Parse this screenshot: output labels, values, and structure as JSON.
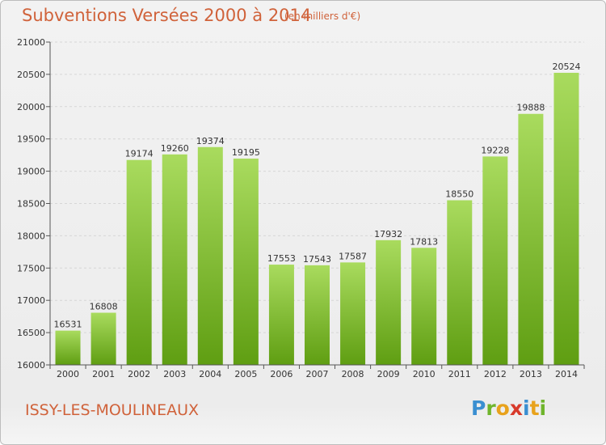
{
  "header": {
    "title": "Subventions Versées 2000 à 2014",
    "unit": "(en milliers d'€)"
  },
  "footer": {
    "place": "ISSY-LES-MOULINEAUX",
    "logo": "Proxiti"
  },
  "colors": {
    "accent": "#d0623a",
    "bar_top": "#a9db5e",
    "bar_bottom": "#5f9e12",
    "logo_letters": [
      "#3a8fd1",
      "#6fb52c",
      "#e8a21c",
      "#d83a2b",
      "#3a8fd1",
      "#e8a21c",
      "#6fb52c"
    ]
  },
  "chart_data": {
    "type": "bar",
    "title": "Subventions Versées 2000 à 2014",
    "subtitle": "(en milliers d'€)",
    "categories": [
      "2000",
      "2001",
      "2002",
      "2003",
      "2004",
      "2005",
      "2006",
      "2007",
      "2008",
      "2009",
      "2010",
      "2011",
      "2012",
      "2013",
      "2014"
    ],
    "values": [
      16531,
      16808,
      19174,
      19260,
      19374,
      19195,
      17553,
      17543,
      17587,
      17932,
      17813,
      18550,
      19228,
      19888,
      20524
    ],
    "ylim": [
      16000,
      21000
    ],
    "yticks": [
      16000,
      16500,
      17000,
      17500,
      18000,
      18500,
      19000,
      19500,
      20000,
      20500,
      21000
    ],
    "grid": true,
    "data_labels": true
  }
}
